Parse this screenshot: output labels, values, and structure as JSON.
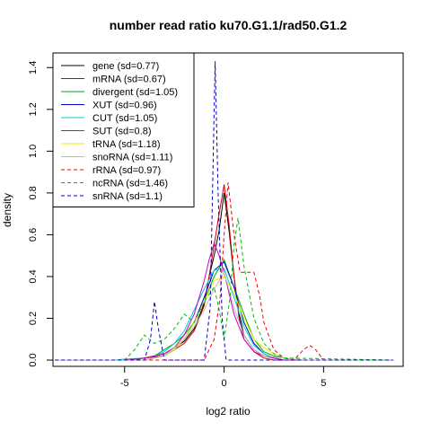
{
  "chart_data": {
    "type": "line",
    "title": "number read ratio ku70.G1.1/rad50.G1.2",
    "xlabel": "log2 ratio",
    "ylabel": "density",
    "xlim": [
      -8.6,
      9.0
    ],
    "ylim": [
      -0.03,
      1.47
    ],
    "xticks": [
      -5,
      0,
      5
    ],
    "yticks": [
      0.0,
      0.2,
      0.4,
      0.6,
      0.8,
      1.0,
      1.2,
      1.4
    ],
    "legend_position": "top-left",
    "series": [
      {
        "name": "gene (sd=0.77)",
        "color": "#000000",
        "dash": "solid",
        "x": [
          -8.5,
          -5,
          -4,
          -3,
          -2.5,
          -2,
          -1.5,
          -1,
          -0.75,
          -0.5,
          -0.25,
          0,
          0.25,
          0.5,
          0.75,
          1,
          1.5,
          2,
          2.5,
          3,
          4,
          8.5
        ],
        "y": [
          0,
          0,
          0.01,
          0.03,
          0.06,
          0.09,
          0.15,
          0.27,
          0.4,
          0.5,
          0.62,
          0.8,
          0.62,
          0.4,
          0.22,
          0.12,
          0.05,
          0.02,
          0.01,
          0,
          0,
          0
        ]
      },
      {
        "name": "mRNA (sd=0.67)",
        "color": "#cc0000",
        "dash": "solid",
        "x": [
          -8.5,
          -5,
          -4,
          -3,
          -2.5,
          -2,
          -1.5,
          -1,
          -0.75,
          -0.5,
          -0.25,
          0,
          0.25,
          0.5,
          0.75,
          1,
          1.5,
          2,
          2.5,
          3,
          4,
          8.5
        ],
        "y": [
          0,
          0,
          0.01,
          0.02,
          0.05,
          0.08,
          0.14,
          0.26,
          0.4,
          0.55,
          0.7,
          0.84,
          0.65,
          0.4,
          0.2,
          0.1,
          0.04,
          0.01,
          0,
          0,
          0,
          0
        ]
      },
      {
        "name": "divergent (sd=1.05)",
        "color": "#00aa00",
        "dash": "solid",
        "x": [
          -8.5,
          -5,
          -4.5,
          -4,
          -3.5,
          -3,
          -2.5,
          -2,
          -1.5,
          -1,
          -0.5,
          0,
          0.5,
          1,
          1.5,
          2,
          2.5,
          3,
          4,
          8.5
        ],
        "y": [
          0,
          0,
          0,
          0.01,
          0.02,
          0.05,
          0.08,
          0.12,
          0.18,
          0.28,
          0.4,
          0.48,
          0.35,
          0.22,
          0.1,
          0.04,
          0.02,
          0.01,
          0,
          0
        ]
      },
      {
        "name": "XUT (sd=0.96)",
        "color": "#0000cc",
        "dash": "solid",
        "x": [
          -8.5,
          -5,
          -4,
          -3.5,
          -3,
          -2.5,
          -2,
          -1.5,
          -1,
          -0.5,
          0,
          0.5,
          1,
          1.5,
          2,
          2.5,
          3,
          4,
          8.5
        ],
        "y": [
          0,
          0,
          0,
          0.01,
          0.02,
          0.05,
          0.1,
          0.18,
          0.3,
          0.43,
          0.47,
          0.35,
          0.18,
          0.08,
          0.03,
          0.01,
          0,
          0,
          0
        ]
      },
      {
        "name": "CUT (sd=1.05)",
        "color": "#00cccc",
        "dash": "solid",
        "x": [
          -8.5,
          -5.5,
          -5,
          -4,
          -3.5,
          -3,
          -2.5,
          -2,
          -1.5,
          -1,
          -0.5,
          0,
          0.5,
          1,
          1.5,
          2,
          2.5,
          3,
          4,
          8.5
        ],
        "y": [
          0,
          0,
          0.005,
          0.01,
          0.02,
          0.04,
          0.08,
          0.14,
          0.24,
          0.34,
          0.43,
          0.44,
          0.3,
          0.16,
          0.07,
          0.03,
          0.01,
          0,
          0,
          0
        ]
      },
      {
        "name": "SUT (sd=0.8)",
        "color": "#cc00cc",
        "dash": "solid",
        "x": [
          -8.5,
          -5,
          -4,
          -3,
          -2.5,
          -2,
          -1.5,
          -1,
          -0.75,
          -0.5,
          -0.25,
          0,
          0.25,
          0.5,
          1,
          1.5,
          2,
          2.5,
          3,
          4,
          8.5
        ],
        "y": [
          0,
          0,
          0.01,
          0.03,
          0.06,
          0.12,
          0.22,
          0.38,
          0.48,
          0.56,
          0.5,
          0.42,
          0.32,
          0.22,
          0.1,
          0.04,
          0.02,
          0.01,
          0,
          0,
          0
        ]
      },
      {
        "name": "tRNA (sd=1.18)",
        "color": "#eeee00",
        "dash": "solid",
        "x": [
          -8.5,
          -4,
          -3,
          -2.5,
          -2,
          -1.5,
          -1,
          -0.5,
          0,
          0.5,
          1,
          1.5,
          2,
          2.5,
          3,
          4,
          8.5
        ],
        "y": [
          0,
          0,
          0.02,
          0.05,
          0.1,
          0.18,
          0.28,
          0.38,
          0.4,
          0.32,
          0.2,
          0.1,
          0.06,
          0.03,
          0.01,
          0,
          0
        ]
      },
      {
        "name": "snoRNA (sd=1.11)",
        "color": "#bbbbbb",
        "dash": "solid",
        "x": [
          -8.5,
          -4,
          -3,
          -2.5,
          -2,
          -1.5,
          -1,
          -0.5,
          0,
          0.5,
          1,
          1.5,
          2,
          3,
          4,
          8.5
        ],
        "y": [
          0,
          0,
          0.02,
          0.06,
          0.1,
          0.16,
          0.24,
          0.34,
          0.42,
          0.25,
          0.12,
          0.05,
          0.02,
          0.01,
          0,
          0
        ]
      },
      {
        "name": "rRNA (sd=0.97)",
        "color": "#ee0000",
        "dash": "dashed",
        "x": [
          -8.5,
          -2,
          -1,
          -0.5,
          -0.2,
          0,
          0.2,
          0.5,
          0.8,
          1,
          1.3,
          1.5,
          1.8,
          2,
          2.5,
          3,
          3.5,
          4,
          4.3,
          4.6,
          5,
          8.5
        ],
        "y": [
          0,
          0,
          0,
          0.1,
          0.3,
          0.6,
          0.85,
          0.6,
          0.42,
          0.42,
          0.42,
          0.42,
          0.3,
          0.18,
          0.05,
          0.01,
          0,
          0.05,
          0.07,
          0.05,
          0,
          0
        ]
      },
      {
        "name": "ncRNA (sd=1.46)",
        "color": "#00bb00",
        "dash": "dashed",
        "x": [
          -8.5,
          -5,
          -4.5,
          -4,
          -3.5,
          -3,
          -2.5,
          -2,
          -1.5,
          -1,
          -0.5,
          -0.2,
          0,
          0.3,
          0.5,
          0.7,
          1,
          1.5,
          2,
          2.5,
          3,
          8.5
        ],
        "y": [
          0,
          0,
          0.05,
          0.12,
          0.08,
          0.1,
          0.15,
          0.22,
          0.18,
          0.28,
          0.35,
          0.22,
          0.1,
          0.3,
          0.55,
          0.68,
          0.45,
          0.2,
          0.08,
          0.03,
          0.01,
          0
        ]
      },
      {
        "name": "snRNA (sd=1.1)",
        "color": "#0000cc",
        "dash": "dashed",
        "x": [
          -8.5,
          -4,
          -3.7,
          -3.5,
          -3.3,
          -3,
          -2.5,
          -1,
          -0.7,
          -0.45,
          -0.3,
          -0.1,
          0.1,
          0.5,
          1,
          8.5
        ],
        "y": [
          0,
          0,
          0.1,
          0.28,
          0.15,
          0,
          0,
          0,
          0.25,
          1.43,
          0.8,
          0.2,
          0,
          0,
          0,
          0
        ]
      }
    ]
  }
}
